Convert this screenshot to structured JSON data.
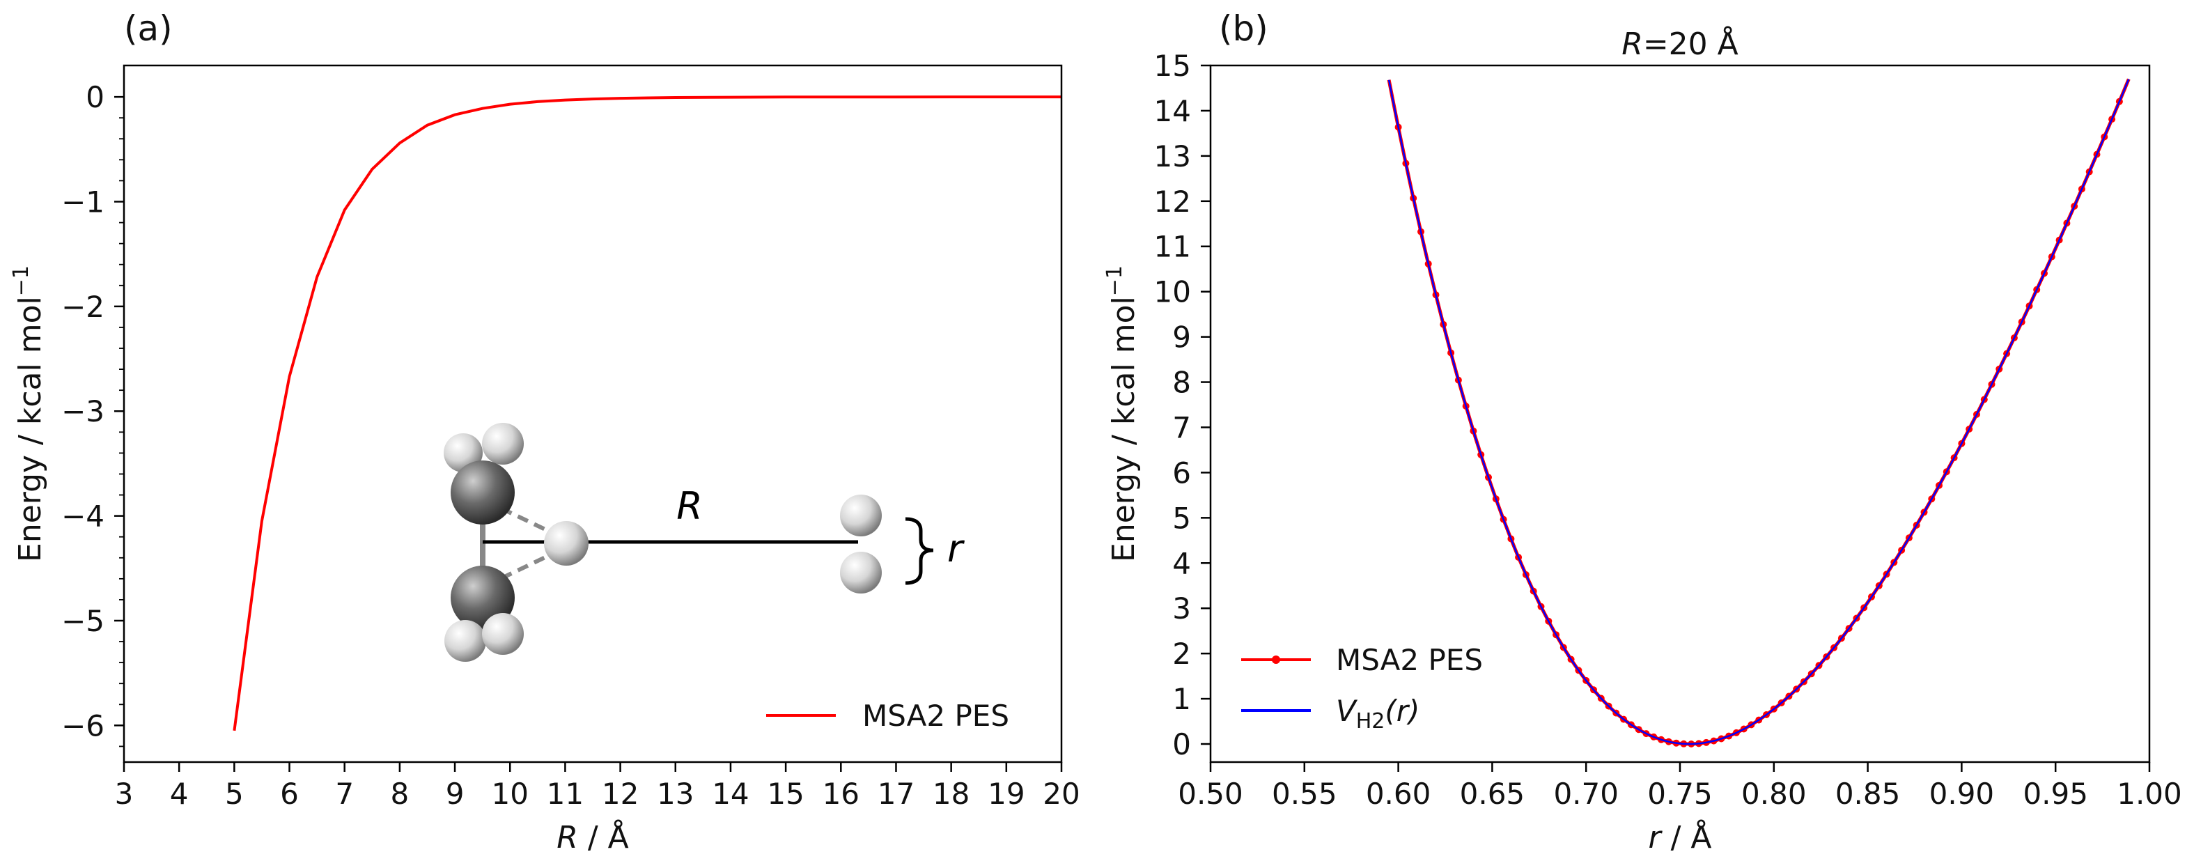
{
  "chart_data": [
    {
      "panel_label": "(a)",
      "type": "line",
      "title": "",
      "xlabel_var": "R",
      "xlabel_unit": " / Å",
      "ylabel": "Energy / kcal mol",
      "ylabel_sup": "−1",
      "xlim": [
        3,
        20
      ],
      "ylim": [
        -6.35,
        0.3
      ],
      "xticks": [
        3,
        4,
        5,
        6,
        7,
        8,
        9,
        10,
        11,
        12,
        13,
        14,
        15,
        16,
        17,
        18,
        19,
        20
      ],
      "yticks": [
        0,
        -1,
        -2,
        -3,
        -4,
        -5,
        -6
      ],
      "ytick_labels": [
        "0",
        "−1",
        "−2",
        "−3",
        "−4",
        "−5",
        "−6"
      ],
      "series": [
        {
          "name": "MSA2 PES",
          "color": "#ff0000",
          "x": [
            5.0,
            5.5,
            6.0,
            6.5,
            7.0,
            7.5,
            8.0,
            8.5,
            9.0,
            9.5,
            10.0,
            10.5,
            11.0,
            11.5,
            12.0,
            12.5,
            13.0,
            14.0,
            15.0,
            16.0,
            17.0,
            18.0,
            19.0,
            20.0
          ],
          "y": [
            -6.05,
            -4.05,
            -2.67,
            -1.72,
            -1.08,
            -0.69,
            -0.44,
            -0.27,
            -0.17,
            -0.11,
            -0.07,
            -0.045,
            -0.03,
            -0.02,
            -0.013,
            -0.009,
            -0.006,
            -0.003,
            -0.0015,
            -0.0008,
            -0.0004,
            -0.0002,
            -0.0001,
            0
          ]
        }
      ],
      "legend_position": "lower right",
      "inset_labels": {
        "R": "R",
        "r": "r"
      }
    },
    {
      "panel_label": "(b)",
      "type": "line",
      "title_var": "R",
      "title_rest": "=20 Å",
      "xlabel_var": "r",
      "xlabel_unit": " / Å",
      "ylabel": "Energy / kcal mol",
      "ylabel_sup": "−1",
      "xlim": [
        0.5,
        1.0
      ],
      "ylim": [
        -0.4,
        15
      ],
      "xticks": [
        0.5,
        0.55,
        0.6,
        0.65,
        0.7,
        0.75,
        0.8,
        0.85,
        0.9,
        0.95,
        1.0
      ],
      "xtick_labels": [
        "0.50",
        "0.55",
        "0.60",
        "0.65",
        "0.70",
        "0.75",
        "0.80",
        "0.85",
        "0.90",
        "0.95",
        "1.00"
      ],
      "yticks": [
        0,
        1,
        2,
        3,
        4,
        5,
        6,
        7,
        8,
        9,
        10,
        11,
        12,
        13,
        14,
        15
      ],
      "series": [
        {
          "name": "MSA2 PES",
          "color": "#ff0000",
          "marker": "dot",
          "model": {
            "r0": 0.755,
            "D": 109.5,
            "a": 1.95
          }
        },
        {
          "name": "V_H2(r)",
          "label_main": "V",
          "label_sub": "H2",
          "label_rest": "(r)",
          "color": "#0000ff",
          "model": {
            "r0": 0.755,
            "D": 109.5,
            "a": 1.95
          }
        }
      ],
      "legend_position": "lower left"
    }
  ]
}
